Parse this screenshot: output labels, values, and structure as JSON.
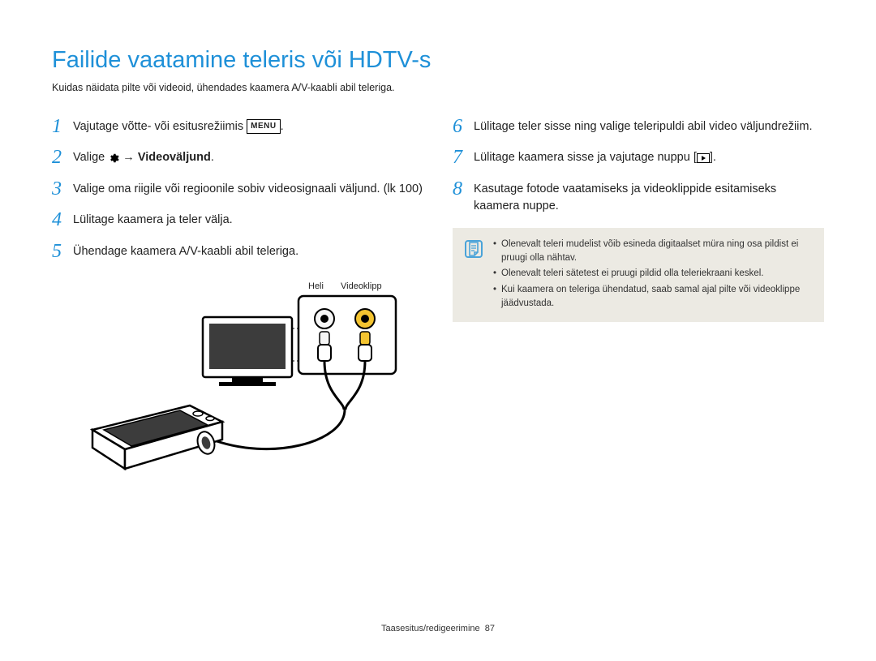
{
  "title": "Failide vaatamine teleris või HDTV-s",
  "subtitle": "Kuidas näidata pilte või videoid, ühendades kaamera A/V-kaabli abil teleriga.",
  "left_steps": [
    {
      "n": "1",
      "html": "Vajutage võtte- või esitusrežiimis <span class='menu-box'>MENU</span>."
    },
    {
      "n": "2",
      "html": "Valige <svg class='gear-icon' width='14' height='14' viewBox='0 0 24 24'><path fill='#000' d='M12 8a4 4 0 100 8 4 4 0 000-8zm9.4 4a7.6 7.6 0 00-.1-1.2l2.1-1.6-2-3.4-2.5 1a7.5 7.5 0 00-2.1-1.2l-.4-2.6h-4l-.4 2.6a7.5 7.5 0 00-2.1 1.2l-2.5-1-2 3.4 2.1 1.6a7.6 7.6 0 000 2.4l-2.1 1.6 2 3.4 2.5-1c.6.5 1.3.9 2.1 1.2l.4 2.6h4l.4-2.6a7.5 7.5 0 002.1-1.2l2.5 1 2-3.4-2.1-1.6c.1-.4.1-.8.1-1.2z'/></svg> → <span class='bold'>Videoväljund</span>."
    },
    {
      "n": "3",
      "html": "Valige oma riigile või regioonile sobiv videosignaali väljund. (lk 100)"
    },
    {
      "n": "4",
      "html": "Lülitage kaamera ja teler välja."
    },
    {
      "n": "5",
      "html": "Ühendage kaamera A/V-kaabli abil teleriga."
    }
  ],
  "right_steps": [
    {
      "n": "6",
      "html": "Lülitage teler sisse ning valige teleripuldi abil video väljundrežiim."
    },
    {
      "n": "7",
      "html": "Lülitage kaamera sisse ja vajutage nuppu [<span class='play-box'></span>]."
    },
    {
      "n": "8",
      "html": "Kasutage fotode vaatamiseks ja videoklippide esitamiseks kaamera nuppe."
    }
  ],
  "diagram": {
    "label_audio": "Heli",
    "label_video": "Videoklipp",
    "jack_audio_color": "#f6f6f6",
    "jack_video_color": "#f4c430",
    "plug_audio_color": "#f6f6f6",
    "plug_video_color": "#f4c430"
  },
  "notes": [
    "Olenevalt teleri mudelist võib esineda digitaalset müra ning osa pildist ei pruugi olla nähtav.",
    "Olenevalt teleri sätetest ei pruugi pildid olla teleriekraani keskel.",
    "Kui kaamera on teleriga ühendatud, saab samal ajal pilte või videoklippe jäädvustada."
  ],
  "footer": {
    "section": "Taasesitus/redigeerimine",
    "page": "87"
  },
  "colors": {
    "accent": "#1e90d8",
    "note_bg": "#eceae3",
    "note_icon": "#4aa3d9"
  }
}
